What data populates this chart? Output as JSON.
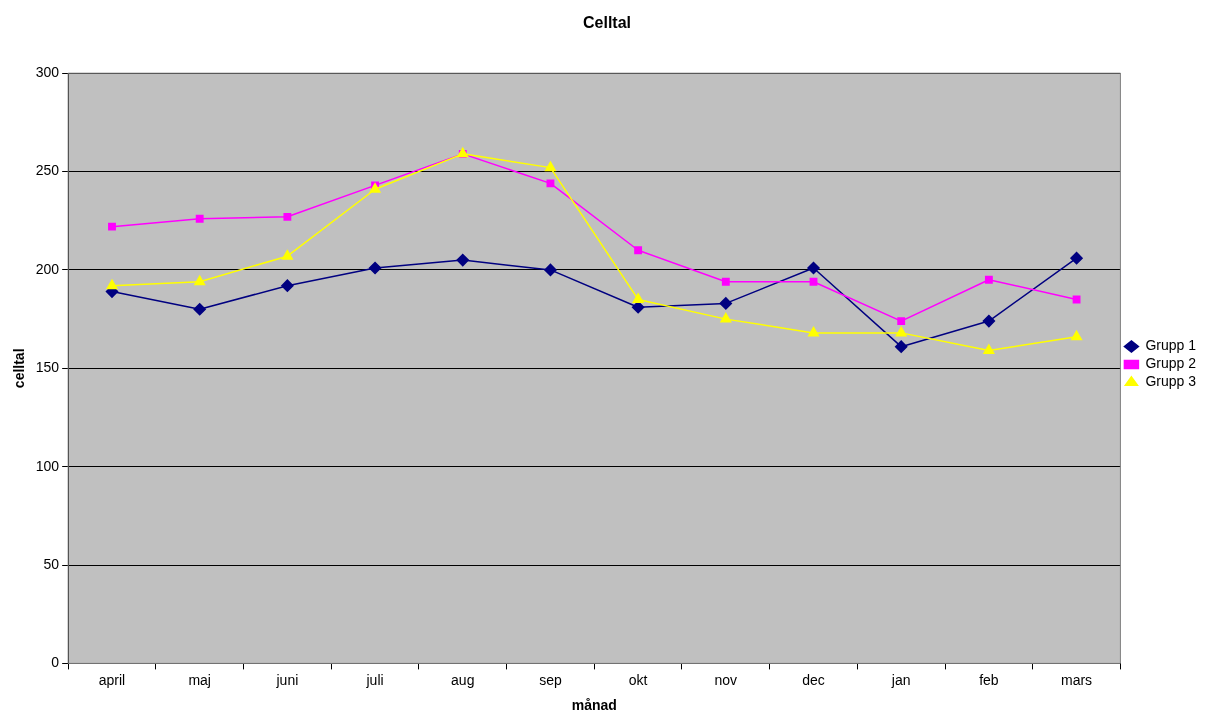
{
  "chart_data": {
    "type": "line",
    "title": "Celltal",
    "xlabel": "månad",
    "ylabel": "celltal",
    "categories": [
      "april",
      "maj",
      "juni",
      "juli",
      "aug",
      "sep",
      "okt",
      "nov",
      "dec",
      "jan",
      "feb",
      "mars"
    ],
    "series": [
      {
        "name": "Grupp 1",
        "color": "#000080",
        "marker": "diamond",
        "values": [
          189,
          180,
          192,
          201,
          205,
          200,
          181,
          183,
          201,
          161,
          174,
          206
        ]
      },
      {
        "name": "Grupp 2",
        "color": "#ff00ff",
        "marker": "square",
        "values": [
          222,
          226,
          227,
          243,
          259,
          244,
          210,
          194,
          194,
          174,
          195,
          185
        ]
      },
      {
        "name": "Grupp 3",
        "color": "#ffff00",
        "marker": "triangle",
        "values": [
          192,
          194,
          207,
          241,
          259,
          252,
          185,
          175,
          168,
          168,
          159,
          166
        ]
      }
    ],
    "ylim": [
      0,
      300
    ],
    "yticks": [
      0,
      50,
      100,
      150,
      200,
      250,
      300
    ],
    "grid": "y",
    "legend": "right",
    "line_style": "solid"
  }
}
